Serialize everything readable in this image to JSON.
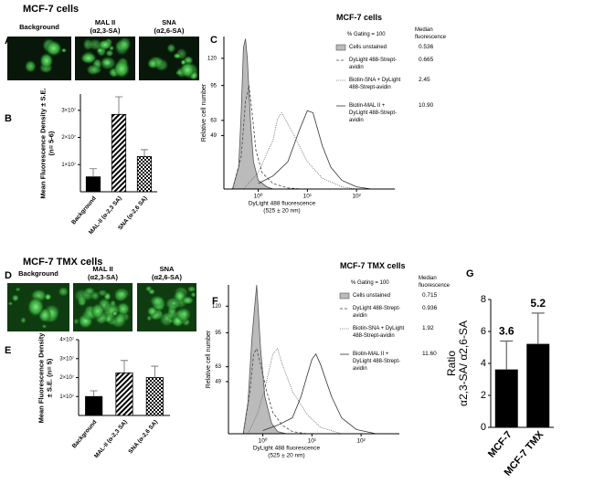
{
  "sections": [
    {
      "title": "MCF-7 cells"
    },
    {
      "title": "MCF-7 TMX cells"
    }
  ],
  "panel_letters": [
    "A",
    "B",
    "C",
    "D",
    "E",
    "F",
    "G"
  ],
  "micrographs": [
    [
      {
        "label": "Background"
      },
      {
        "label": "MAL II",
        "sublabel": "(α2,3-SA)"
      },
      {
        "label": "SNA",
        "sublabel": "(α2,6-SA)"
      }
    ],
    [
      {
        "label": "Background"
      },
      {
        "label": "MAL II",
        "sublabel": "(α2,3-SA)"
      },
      {
        "label": "SNA",
        "sublabel": "(α2,6-SA)"
      }
    ]
  ],
  "chart_data": [
    {
      "type": "bar",
      "ylabel": "Mean Fluorescence Density ± S.E. (n= 5-6)",
      "categories": [
        "Background",
        "MAL-II (α-2,3 SA)",
        "SNA (α-2,6 SA)"
      ],
      "values": [
        5500000,
        28500000,
        13000000
      ],
      "errors": [
        3000000,
        6500000,
        2500000
      ],
      "patterns": [
        "solid",
        "hatch",
        "check"
      ],
      "color": "#000000",
      "ylim": [
        0,
        36000000
      ],
      "yticks": [
        {
          "value": 10000000,
          "label": "1×10⁷"
        },
        {
          "value": 20000000,
          "label": "2×10⁷"
        },
        {
          "value": 30000000,
          "label": "3×10⁷"
        }
      ]
    },
    {
      "type": "line",
      "title": "MCF-7 cells",
      "legend_header": "% Gating = 100",
      "median_header": "Median fluorescence",
      "xlabel": "DyLight 488 fluorescence",
      "xlabel_sub": "(525 ± 20 nm)",
      "ylabel": "Relative cell number",
      "xscale": "log",
      "xlim": [
        0.2,
        600
      ],
      "ylim": [
        0,
        140
      ],
      "xticks": [
        {
          "value": 1,
          "label": "10⁰"
        },
        {
          "value": 10,
          "label": "10¹"
        },
        {
          "value": 100,
          "label": "10²"
        }
      ],
      "yticks": [
        49,
        63,
        95,
        120
      ],
      "series": [
        {
          "name": "Cells unstained",
          "style": "filled",
          "color": "#555555",
          "fill": "#bbbbbb",
          "median": "0.536",
          "x": [
            0.3,
            0.4,
            0.45,
            0.5,
            0.55,
            0.6,
            0.7,
            0.8,
            1,
            1.5,
            2
          ],
          "values": [
            0,
            20,
            70,
            130,
            138,
            120,
            60,
            25,
            8,
            2,
            0
          ]
        },
        {
          "name": "DyLight 488-Strept-avidin",
          "style": "dashed",
          "color": "#444444",
          "median": "0.665",
          "x": [
            0.3,
            0.45,
            0.55,
            0.65,
            0.75,
            0.9,
            1.2,
            2,
            4,
            8
          ],
          "values": [
            0,
            30,
            80,
            95,
            70,
            35,
            15,
            5,
            1,
            0
          ]
        },
        {
          "name": "Biotin-SNA + DyLight 488-Strept-avidin",
          "style": "dotted",
          "color": "#666666",
          "median": "2.45",
          "x": [
            0.5,
            1,
            2,
            2.5,
            3,
            4,
            6,
            10,
            20,
            50,
            100
          ],
          "values": [
            0,
            15,
            45,
            65,
            70,
            60,
            45,
            25,
            10,
            2,
            0
          ]
        },
        {
          "name": "Biotin-MAL II + DyLight 488-Strept-avidin",
          "style": "solid",
          "color": "#333333",
          "median": "10.90",
          "x": [
            1,
            2,
            4,
            7,
            10,
            13,
            20,
            30,
            50,
            100,
            200
          ],
          "values": [
            5,
            12,
            25,
            55,
            72,
            70,
            40,
            20,
            8,
            2,
            0
          ]
        }
      ]
    },
    {
      "type": "bar",
      "ylabel": "Mean Fluorescence Density ± S.E. (n= 5)",
      "categories": [
        "Background",
        "MAL-II (α-2,3 SA)",
        "SNA (α-2,6 SA)"
      ],
      "values": [
        10000000,
        22500000,
        20000000
      ],
      "errors": [
        3000000,
        6500000,
        6000000
      ],
      "patterns": [
        "solid",
        "hatch",
        "check"
      ],
      "color": "#000000",
      "ylim": [
        0,
        40000000
      ],
      "yticks": [
        {
          "value": 10000000,
          "label": "1×10⁷"
        },
        {
          "value": 20000000,
          "label": "2×10⁷"
        },
        {
          "value": 30000000,
          "label": "3×10⁷"
        },
        {
          "value": 40000000,
          "label": "4×10⁷"
        }
      ]
    },
    {
      "type": "line",
      "title": "MCF-7 TMX cells",
      "legend_header": "% Gating = 100",
      "median_header": "Median fluorescence",
      "xlabel": "DyLight 488 fluorescence",
      "xlabel_sub": "(525 ± 20 nm)",
      "ylabel": "Relative cell number",
      "xscale": "log",
      "xlim": [
        0.2,
        600
      ],
      "ylim": [
        0,
        140
      ],
      "xticks": [
        {
          "value": 1,
          "label": "10⁰"
        },
        {
          "value": 10,
          "label": "10¹"
        },
        {
          "value": 100,
          "label": "10²"
        }
      ],
      "yticks": [
        49,
        63,
        95,
        120
      ],
      "series": [
        {
          "name": "Cells unstained",
          "style": "filled",
          "color": "#555555",
          "fill": "#bbbbbb",
          "median": "0.715",
          "x": [
            0.4,
            0.5,
            0.6,
            0.7,
            0.75,
            0.8,
            0.9,
            1.1,
            1.5,
            2,
            3
          ],
          "values": [
            0,
            30,
            90,
            125,
            140,
            120,
            80,
            35,
            10,
            2,
            0
          ]
        },
        {
          "name": "DyLight 488-Strept-avidin",
          "style": "dashed",
          "color": "#444444",
          "median": "0.936",
          "x": [
            0.4,
            0.55,
            0.65,
            0.75,
            0.9,
            1.2,
            1.6,
            2.5,
            4,
            8
          ],
          "values": [
            0,
            40,
            75,
            80,
            65,
            40,
            20,
            8,
            2,
            0
          ]
        },
        {
          "name": "Biotin-SNA + DyLight 488-Strept-avidin",
          "style": "dotted",
          "color": "#666666",
          "median": "1.92",
          "x": [
            0.5,
            0.8,
            1.2,
            1.6,
            2,
            2.5,
            4,
            8,
            15,
            40
          ],
          "values": [
            0,
            20,
            50,
            75,
            80,
            65,
            40,
            18,
            6,
            0
          ]
        },
        {
          "name": "Biotin-MAL II + DyLight 488-Strept-avidin",
          "style": "solid",
          "color": "#333333",
          "median": "11.60",
          "x": [
            1,
            2,
            4,
            6,
            8,
            10,
            12,
            15,
            25,
            40,
            80,
            200
          ],
          "values": [
            3,
            8,
            15,
            35,
            55,
            70,
            75,
            65,
            35,
            15,
            4,
            0
          ]
        }
      ]
    },
    {
      "type": "bar",
      "ylabel": "Ratio",
      "ylabel_sub": "α2,3-SA/ α2,6-SA",
      "categories": [
        "MCF-7",
        "MCF-7 TMX"
      ],
      "values": [
        3.6,
        5.2
      ],
      "errors": [
        1.8,
        1.95
      ],
      "data_labels": true,
      "color": "#000000",
      "ylim": [
        0,
        8
      ],
      "yticks": [
        0,
        2,
        4,
        6,
        8
      ]
    }
  ]
}
